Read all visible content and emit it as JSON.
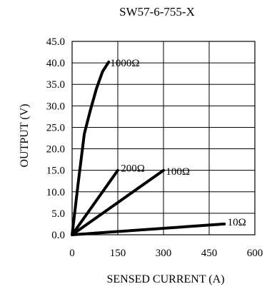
{
  "chart_data": {
    "type": "line",
    "title": "SW57-6-755-X",
    "xlabel": "SENSED CURRENT (A)",
    "ylabel": "OUTPUT (V)",
    "xlim": [
      0,
      600
    ],
    "ylim": [
      0,
      45
    ],
    "xticks": [
      0,
      150,
      300,
      450,
      600
    ],
    "yticks": [
      0,
      5,
      10,
      15,
      20,
      25,
      30,
      35,
      40,
      45
    ],
    "xtick_labels": [
      "0",
      "150",
      "300",
      "450",
      "600"
    ],
    "ytick_labels": [
      "0.0",
      "5.0",
      "10.0",
      "15.0",
      "20.0",
      "25.0",
      "30.0",
      "35.0",
      "40.0",
      "45.0"
    ],
    "grid": true,
    "line_color": "#000000",
    "grid_color": "#000000",
    "series": [
      {
        "name": "1000Ω",
        "x": [
          0,
          20,
          40,
          60,
          80,
          100,
          120
        ],
        "y": [
          0,
          12.0,
          23.5,
          29.0,
          34.0,
          38.0,
          40.2
        ],
        "label_anchor": [
          125,
          40.0
        ]
      },
      {
        "name": "200Ω",
        "x": [
          0,
          150
        ],
        "y": [
          0,
          15
        ],
        "label_anchor": [
          160,
          15.5
        ]
      },
      {
        "name": "100Ω",
        "x": [
          0,
          300
        ],
        "y": [
          0,
          15
        ],
        "label_anchor": [
          308,
          14.8
        ]
      },
      {
        "name": "10Ω",
        "x": [
          0,
          500
        ],
        "y": [
          0,
          2.5
        ],
        "label_anchor": [
          510,
          3.0
        ]
      }
    ]
  }
}
